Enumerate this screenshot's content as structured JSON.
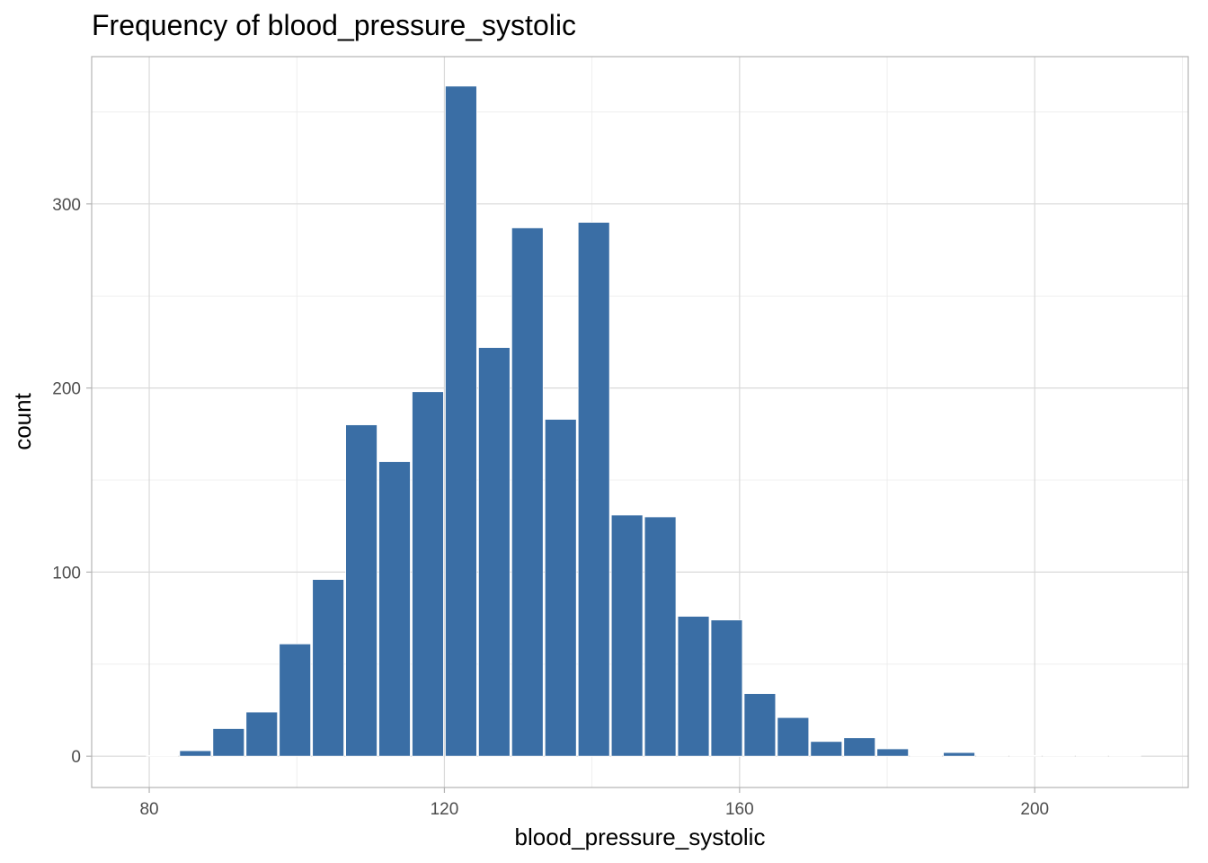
{
  "chart_data": {
    "type": "bar",
    "title": "Frequency of blood_pressure_systolic",
    "xlabel": "blood_pressure_systolic",
    "ylabel": "count",
    "xlim": [
      72.2,
      220.8
    ],
    "ylim": [
      -17,
      380
    ],
    "x_ticks": [
      80,
      120,
      160,
      200
    ],
    "y_ticks": [
      0,
      100,
      200,
      300
    ],
    "grid": true,
    "legend": "none",
    "bar_color": "#3a6ea5",
    "bar_edge_color": "#ffffff",
    "bins": [
      {
        "x0": 79.5,
        "x1": 84.0,
        "count": 0
      },
      {
        "x0": 84.0,
        "x1": 88.5,
        "count": 3
      },
      {
        "x0": 88.5,
        "x1": 93.0,
        "count": 15
      },
      {
        "x0": 93.0,
        "x1": 97.5,
        "count": 24
      },
      {
        "x0": 97.5,
        "x1": 102.0,
        "count": 61
      },
      {
        "x0": 102.0,
        "x1": 106.5,
        "count": 96
      },
      {
        "x0": 106.5,
        "x1": 111.0,
        "count": 180
      },
      {
        "x0": 111.0,
        "x1": 115.5,
        "count": 160
      },
      {
        "x0": 115.5,
        "x1": 120.0,
        "count": 198
      },
      {
        "x0": 120.0,
        "x1": 124.5,
        "count": 364
      },
      {
        "x0": 124.5,
        "x1": 129.0,
        "count": 222
      },
      {
        "x0": 129.0,
        "x1": 133.5,
        "count": 287
      },
      {
        "x0": 133.5,
        "x1": 138.0,
        "count": 183
      },
      {
        "x0": 138.0,
        "x1": 142.5,
        "count": 290
      },
      {
        "x0": 142.5,
        "x1": 147.0,
        "count": 131
      },
      {
        "x0": 147.0,
        "x1": 151.5,
        "count": 130
      },
      {
        "x0": 151.5,
        "x1": 156.0,
        "count": 76
      },
      {
        "x0": 156.0,
        "x1": 160.5,
        "count": 74
      },
      {
        "x0": 160.5,
        "x1": 165.0,
        "count": 34
      },
      {
        "x0": 165.0,
        "x1": 169.5,
        "count": 21
      },
      {
        "x0": 169.5,
        "x1": 174.0,
        "count": 8
      },
      {
        "x0": 174.0,
        "x1": 178.5,
        "count": 10
      },
      {
        "x0": 178.5,
        "x1": 183.0,
        "count": 4
      },
      {
        "x0": 183.0,
        "x1": 187.5,
        "count": 0
      },
      {
        "x0": 187.5,
        "x1": 192.0,
        "count": 2
      },
      {
        "x0": 192.0,
        "x1": 196.5,
        "count": 0
      },
      {
        "x0": 196.5,
        "x1": 201.0,
        "count": 0
      },
      {
        "x0": 201.0,
        "x1": 205.5,
        "count": 0
      },
      {
        "x0": 205.5,
        "x1": 210.0,
        "count": 0
      },
      {
        "x0": 210.0,
        "x1": 214.5,
        "count": 0
      }
    ]
  }
}
